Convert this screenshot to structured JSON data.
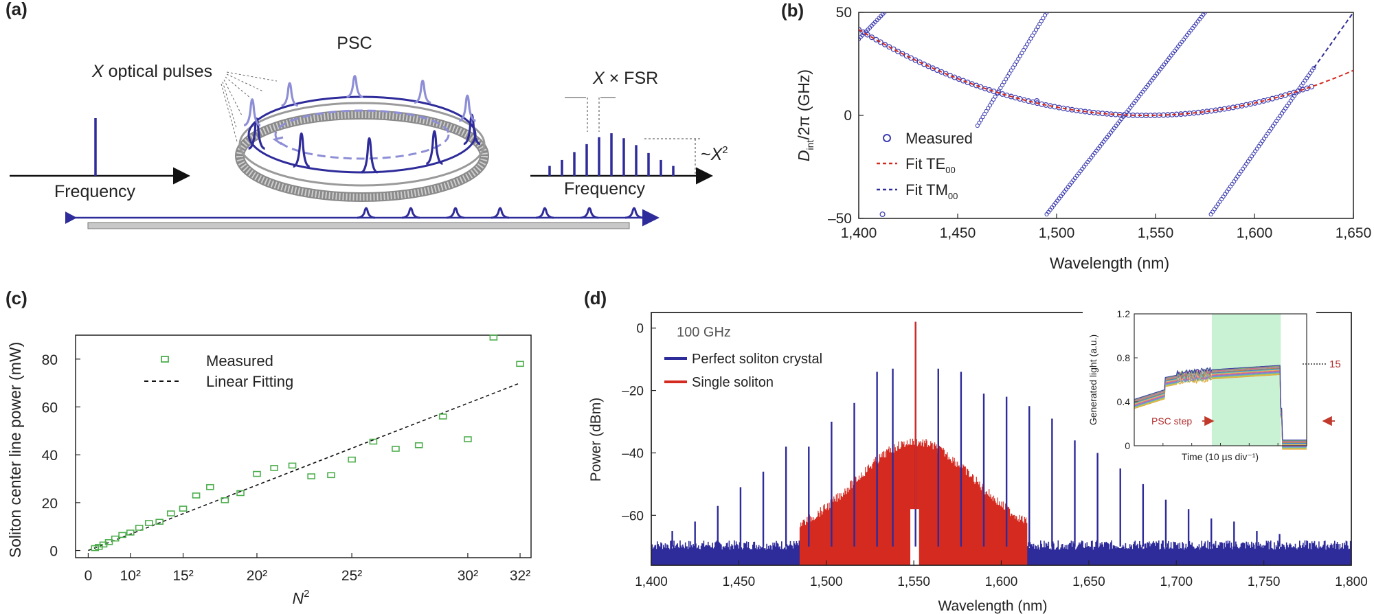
{
  "panels": {
    "a": "(a)",
    "b": "(b)",
    "c": "(c)",
    "d": "(d)"
  },
  "colors": {
    "navy": "#2e2b9a",
    "red": "#d42a20",
    "green": "#4cae4c",
    "lightblue": "#8d8ed6",
    "shade": "#c9f1d3"
  },
  "diagram_a": {
    "psc_label": "PSC",
    "pulses_label": "X optical pulses",
    "pulses_var": "X",
    "pulses_rest": " optical pulses",
    "fsr_label": "X × FSR",
    "fsr_var": "X",
    "fsr_rest": " × FSR",
    "scaling_label": "~X²",
    "scaling_prefix": "~",
    "scaling_var": "X",
    "scaling_exp": "2",
    "freq_left": "Frequency",
    "freq_right": "Frequency",
    "comb_lines": [
      1,
      1.6,
      2.4,
      3.2,
      3.9,
      4.3,
      3.8,
      3.1,
      2.3,
      1.6,
      1
    ]
  },
  "chart_data": [
    {
      "id": "b",
      "type": "scatter",
      "title": "",
      "xlabel": "Wavelength (nm)",
      "ylabel": "D_int/2π (GHz)",
      "ylabel_parts": {
        "main": "D",
        "sub": "int",
        "rest": "/2π (GHz)"
      },
      "xlim": [
        1400,
        1650
      ],
      "ylim": [
        -50,
        50
      ],
      "xticks": [
        1400,
        1450,
        1500,
        1550,
        1600,
        1650
      ],
      "xtick_labels": [
        "1,400",
        "1,450",
        "1,500",
        "1,550",
        "1,600",
        "1,650"
      ],
      "yticks": [
        -50,
        0,
        50
      ],
      "ytick_labels": [
        "–50",
        "0",
        "50"
      ],
      "legend": [
        {
          "label": "Measured",
          "marker": "circle"
        },
        {
          "label": "Fit TE00",
          "main": "Fit TE",
          "sub": "00",
          "style": "red-dash"
        },
        {
          "label": "Fit TM00",
          "main": "Fit TM",
          "sub": "00",
          "style": "blue-dash"
        }
      ],
      "te_fit": {
        "center_nm": 1545,
        "curvature_GHz_per_nm2": 0.00198,
        "offset_GHz": 0,
        "range_nm": [
          1400,
          1650
        ]
      },
      "measured_te_range_nm": [
        1400,
        1630
      ],
      "tm_branches": [
        {
          "x": [
            1400,
            1413
          ],
          "y": [
            37,
            50
          ]
        },
        {
          "x": [
            1460,
            1495
          ],
          "y": [
            -5,
            50
          ]
        },
        {
          "x": [
            1495,
            1575
          ],
          "y": [
            -48,
            50
          ]
        },
        {
          "x": [
            1578,
            1630
          ],
          "y": [
            -48,
            23
          ]
        }
      ],
      "tm_fit": {
        "x": [
          1630,
          1650
        ],
        "y": [
          23,
          50
        ]
      },
      "measured_extra": [
        [
          1412,
          -48
        ],
        [
          1490,
          7
        ]
      ]
    },
    {
      "id": "c",
      "type": "scatter",
      "xlabel": "N²",
      "xlabel_parts": {
        "main": "N",
        "sup": "2"
      },
      "ylabel": "Soliton center line power (mW)",
      "xlim": [
        -30,
        1050
      ],
      "ylim": [
        -3,
        90
      ],
      "xticks": [
        0,
        100,
        225,
        400,
        625,
        900,
        1024
      ],
      "xtick_labels": [
        "0",
        "10²",
        "15²",
        "20²",
        "25²",
        "30²",
        "32²"
      ],
      "yticks": [
        0,
        20,
        40,
        60,
        80
      ],
      "ytick_labels": [
        "0",
        "20",
        "40",
        "60",
        "80"
      ],
      "legend": [
        {
          "label": "Measured",
          "marker": "square-green"
        },
        {
          "label": "Linear Fitting",
          "style": "black-dash"
        }
      ],
      "fit": {
        "x": [
          0,
          1024
        ],
        "y": [
          0,
          70
        ]
      },
      "points": [
        [
          16,
          1
        ],
        [
          25,
          1.5
        ],
        [
          36,
          2.5
        ],
        [
          49,
          3.5
        ],
        [
          64,
          5
        ],
        [
          81,
          6.5
        ],
        [
          100,
          7.5
        ],
        [
          121,
          9.5
        ],
        [
          144,
          11.5
        ],
        [
          169,
          12
        ],
        [
          196,
          15.5
        ],
        [
          225,
          17.5
        ],
        [
          256,
          23
        ],
        [
          289,
          26.5
        ],
        [
          324,
          21
        ],
        [
          361,
          24
        ],
        [
          400,
          32
        ],
        [
          441,
          34.5
        ],
        [
          484,
          35.5
        ],
        [
          529,
          31
        ],
        [
          576,
          31.5
        ],
        [
          625,
          38
        ],
        [
          676,
          45.5
        ],
        [
          729,
          42.5
        ],
        [
          784,
          44
        ],
        [
          841,
          56
        ],
        [
          900,
          46.5
        ],
        [
          961,
          89
        ],
        [
          1024,
          78
        ]
      ]
    },
    {
      "id": "d",
      "type": "line",
      "xlabel": "Wavelength (nm)",
      "ylabel": "Power (dBm)",
      "xlim": [
        1400,
        1800
      ],
      "ylim": [
        -76,
        5
      ],
      "xticks": [
        1400,
        1450,
        1500,
        1550,
        1600,
        1650,
        1700,
        1750,
        1800
      ],
      "xtick_labels": [
        "1,400",
        "1,450",
        "1,500",
        "1,550",
        "1,600",
        "1,650",
        "1,700",
        "1,750",
        "1,800"
      ],
      "yticks": [
        0,
        -20,
        -40,
        -60
      ],
      "ytick_labels": [
        "0",
        "–20",
        "–40",
        "–60"
      ],
      "annotation": "100 GHz",
      "legend": [
        {
          "label": "Perfect soliton crystal",
          "color": "#2e2b9a"
        },
        {
          "label": "Single soliton",
          "color": "#d42a20"
        }
      ],
      "series": [
        {
          "name": "Perfect soliton crystal",
          "type": "comb",
          "wavelength": [
            1412,
            1425,
            1438,
            1451,
            1464,
            1477,
            1490,
            1503,
            1516,
            1529,
            1538,
            1551,
            1564,
            1577,
            1590,
            1603,
            1616,
            1629,
            1642,
            1655,
            1668,
            1681,
            1694,
            1707,
            1720,
            1733,
            1746,
            1759
          ],
          "peak_dBm": [
            -65,
            -62,
            -57,
            -51,
            -46,
            -38,
            -38,
            -30,
            -24,
            -14,
            -13,
            2,
            -13,
            -14,
            -21,
            -22,
            -25,
            -29,
            -36,
            -40,
            -45,
            -50,
            -55,
            -58,
            -61,
            -62,
            -65,
            -66
          ],
          "noise_floor_dBm": -70
        },
        {
          "name": "Single soliton",
          "type": "envelope",
          "center_nm": 1551,
          "peak_dBm": -35,
          "floor_dBm": -66,
          "range_nm": [
            1485,
            1615
          ],
          "pump_dBm": 2
        }
      ]
    },
    {
      "id": "d-inset",
      "type": "line",
      "xlabel": "Time (10 µs div⁻¹)",
      "ylabel": "Generated light (a.u.)",
      "ylim": [
        0,
        1.2
      ],
      "yticks": [
        0,
        0.4,
        0.8,
        1.2
      ],
      "ytick_labels": [
        "0",
        "0.4",
        "0.8",
        "1.2"
      ],
      "traces": 15,
      "trace_label": "15",
      "annotation": "PSC step",
      "shaded_region_fraction": [
        0.45,
        0.85
      ],
      "levels": {
        "start": 0.38,
        "step1": 0.58,
        "step2": 0.67,
        "plateau_end": 0.69,
        "after": 0.0
      }
    }
  ]
}
